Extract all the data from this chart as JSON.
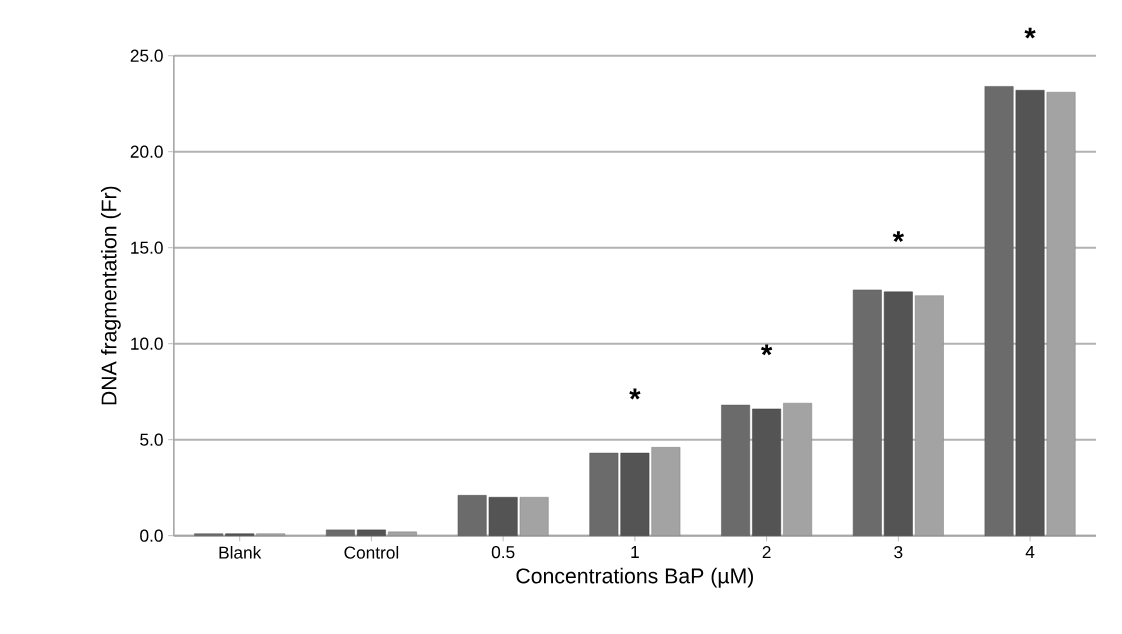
{
  "chart_data": {
    "type": "bar",
    "xlabel": "Concentrations BaP  (µM)",
    "ylabel": "DNA fragmentation  (Fr)",
    "categories": [
      "Blank",
      "Control",
      "0.5",
      "1",
      "2",
      "3",
      "4"
    ],
    "series": [
      {
        "color": "#6b6b6b",
        "values": [
          0.1,
          0.3,
          2.1,
          4.3,
          6.8,
          12.8,
          23.4
        ]
      },
      {
        "color": "#545454",
        "values": [
          0.1,
          0.3,
          2.0,
          4.3,
          6.6,
          12.7,
          23.2
        ]
      },
      {
        "color": "#a3a3a3",
        "values": [
          0.1,
          0.2,
          2.0,
          4.6,
          6.9,
          12.5,
          23.1
        ]
      }
    ],
    "ylim": [
      0,
      25
    ],
    "yticks": [
      {
        "value": 0,
        "label": "0.0"
      },
      {
        "value": 5,
        "label": "5.0"
      },
      {
        "value": 10,
        "label": "10.0"
      },
      {
        "value": 15,
        "label": "15.0"
      },
      {
        "value": 20,
        "label": "20.0"
      },
      {
        "value": 25,
        "label": "25.0"
      }
    ],
    "grid": "y",
    "annotations": [
      "*",
      "*",
      "*",
      "*"
    ]
  }
}
